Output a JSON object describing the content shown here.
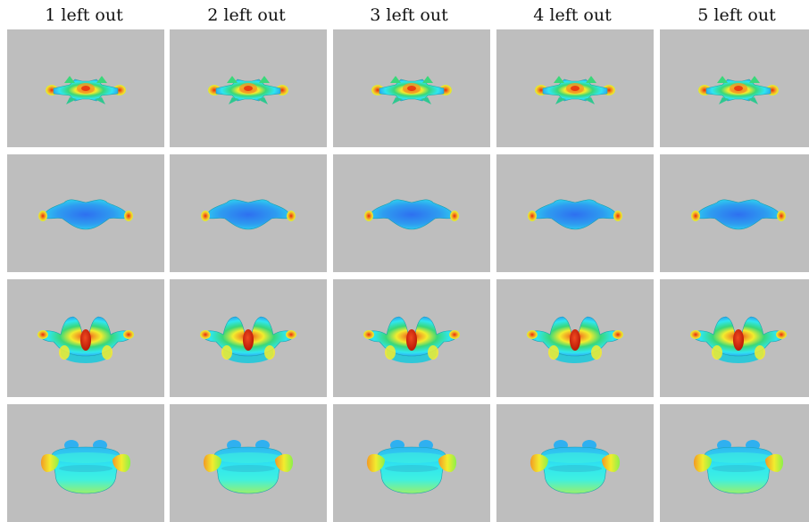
{
  "columns": [
    "1 left out",
    "2 left out",
    "3 left out",
    "4 left out",
    "5 left out"
  ],
  "views": [
    "top-view",
    "bottom-view",
    "front-view",
    "side-view"
  ],
  "colors": {
    "background": "#bebebe",
    "cyan": "#2fe6f0",
    "blue": "#2e8cf0",
    "green": "#39d87a",
    "yellow": "#f2ec2e",
    "orange": "#f29a24",
    "red": "#e8280c"
  }
}
